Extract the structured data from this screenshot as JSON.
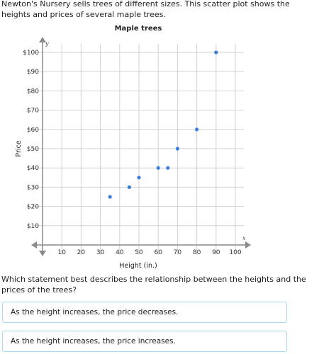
{
  "problem": {
    "intro": "Newton's Nursery sells trees of different sizes. This scatter plot shows the heights and prices of several maple trees.",
    "question": "Which statement best describes the relationship between the heights and the prices of the trees?"
  },
  "choices": [
    {
      "label": "As the height increases, the price decreases."
    },
    {
      "label": "As the height increases, the price increases."
    }
  ],
  "colors": {
    "point": "#3d7ddc",
    "grid": "#d2d2d2",
    "axis": "#8a8a8a",
    "choice_border": "#a9dcee"
  },
  "chart_data": {
    "type": "scatter",
    "title": "Maple trees",
    "xlabel": "Height (in.)",
    "ylabel": "Price",
    "x_axis_letter": "x",
    "y_axis_letter": "y",
    "xlim": [
      0,
      100
    ],
    "ylim": [
      0,
      100
    ],
    "x_ticks": [
      10,
      20,
      30,
      40,
      50,
      60,
      70,
      80,
      90,
      100
    ],
    "y_ticks": [
      10,
      20,
      30,
      40,
      50,
      60,
      70,
      80,
      90,
      100
    ],
    "x_tick_labels": [
      "10",
      "20",
      "30",
      "40",
      "50",
      "60",
      "70",
      "80",
      "90",
      "100"
    ],
    "y_tick_labels": [
      "$10",
      "$20",
      "$30",
      "$40",
      "$50",
      "$60",
      "$70",
      "$80",
      "$90",
      "$100"
    ],
    "grid": true,
    "points": [
      {
        "x": 35,
        "y": 25
      },
      {
        "x": 45,
        "y": 30
      },
      {
        "x": 50,
        "y": 35
      },
      {
        "x": 60,
        "y": 40
      },
      {
        "x": 65,
        "y": 40
      },
      {
        "x": 70,
        "y": 50
      },
      {
        "x": 80,
        "y": 60
      },
      {
        "x": 90,
        "y": 100
      }
    ]
  }
}
